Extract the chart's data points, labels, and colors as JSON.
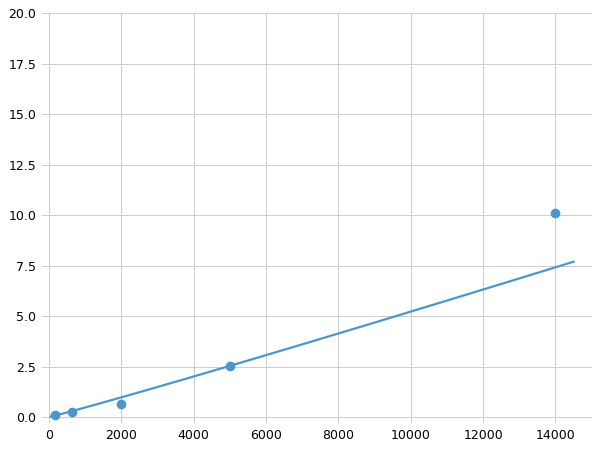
{
  "x_points": [
    156,
    500,
    625,
    2000,
    5000,
    14000
  ],
  "y_points": [
    0.1,
    0.2,
    0.25,
    0.65,
    2.55,
    10.1
  ],
  "marker_x": [
    156,
    625,
    2000,
    5000,
    14000
  ],
  "marker_y": [
    0.1,
    0.25,
    0.65,
    2.55,
    10.1
  ],
  "line_color": "#4d96c9",
  "marker_color": "#4d96c9",
  "marker_size": 7,
  "line_width": 1.6,
  "xlim": [
    -200,
    15000
  ],
  "ylim": [
    -0.3,
    20
  ],
  "xticks": [
    0,
    2000,
    4000,
    6000,
    8000,
    10000,
    12000,
    14000
  ],
  "yticks": [
    0.0,
    2.5,
    5.0,
    7.5,
    10.0,
    12.5,
    15.0,
    17.5,
    20.0
  ],
  "grid_color": "#cccccc",
  "background_color": "#ffffff",
  "power_a": 3.5e-06,
  "power_b": 1.65
}
